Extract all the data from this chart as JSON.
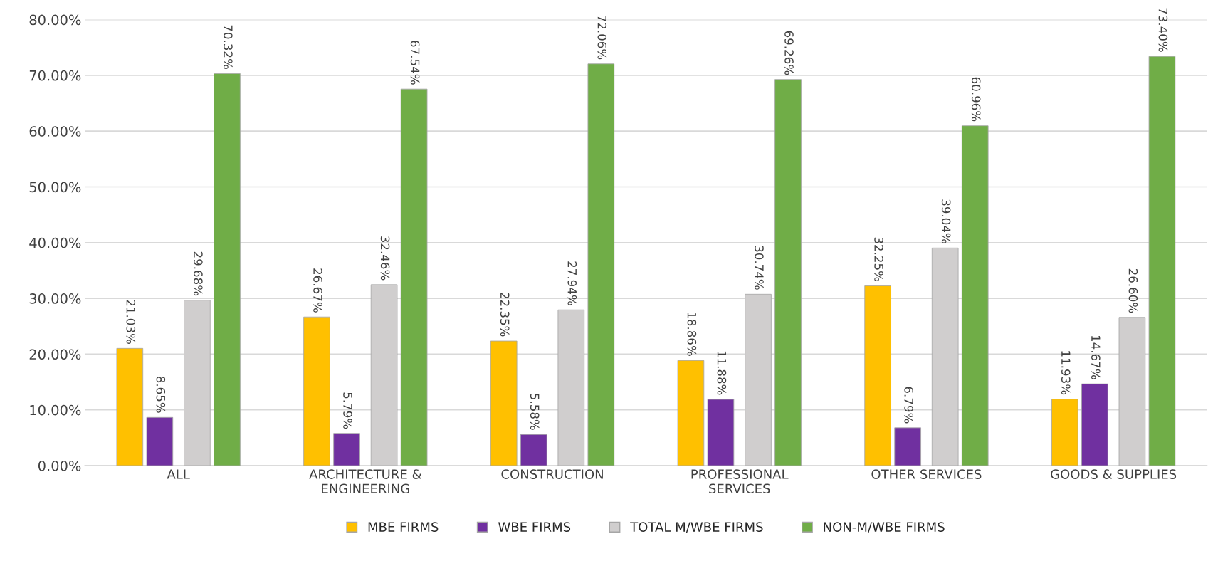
{
  "chart_data": {
    "type": "bar",
    "categories": [
      "ALL",
      "ARCHITECTURE &\nENGINEERING",
      "CONSTRUCTION",
      "PROFESSIONAL\nSERVICES",
      "OTHER SERVICES",
      "GOODS & SUPPLIES"
    ],
    "series": [
      {
        "name": "MBE FIRMS",
        "color": "#ffc000",
        "values": [
          21.03,
          26.67,
          22.35,
          18.86,
          32.25,
          11.93
        ],
        "value_labels": [
          "21.03%",
          "26.67%",
          "22.35%",
          "18.86%",
          "32.25%",
          "11.93%"
        ]
      },
      {
        "name": "WBE FIRMS",
        "color": "#7030a0",
        "values": [
          8.65,
          5.79,
          5.58,
          11.88,
          6.79,
          14.67
        ],
        "value_labels": [
          "8.65%",
          "5.79%",
          "5.58%",
          "11.88%",
          "6.79%",
          "14.67%"
        ]
      },
      {
        "name": "TOTAL M/WBE FIRMS",
        "color": "#d0cece",
        "values": [
          29.68,
          32.46,
          27.94,
          30.74,
          39.04,
          26.6
        ],
        "value_labels": [
          "29.68%",
          "32.46%",
          "27.94%",
          "30.74%",
          "39.04%",
          "26.60%"
        ]
      },
      {
        "name": "NON-M/WBE FIRMS",
        "color": "#70ad47",
        "values": [
          70.32,
          67.54,
          72.06,
          69.26,
          60.96,
          73.4
        ],
        "value_labels": [
          "70.32%",
          "67.54%",
          "72.06%",
          "69.26%",
          "60.96%",
          "73.40%"
        ]
      }
    ],
    "ylim": [
      0,
      80
    ],
    "yticks": [
      {
        "value": 0,
        "label": "0.00%"
      },
      {
        "value": 10,
        "label": "10.00%"
      },
      {
        "value": 20,
        "label": "20.00%"
      },
      {
        "value": 30,
        "label": "30.00%"
      },
      {
        "value": 40,
        "label": "40.00%"
      },
      {
        "value": 50,
        "label": "50.00%"
      },
      {
        "value": 60,
        "label": "60.00%"
      },
      {
        "value": 70,
        "label": "70.00%"
      },
      {
        "value": 80,
        "label": "80.00%"
      }
    ],
    "grid": "y",
    "legend": "bottom"
  }
}
